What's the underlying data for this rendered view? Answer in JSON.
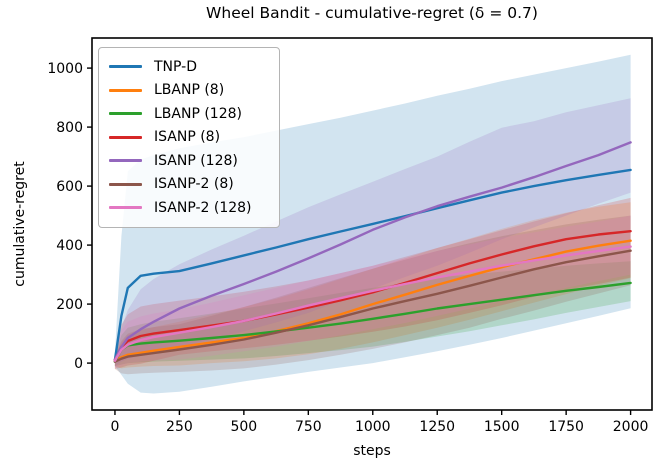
{
  "chart_data": {
    "type": "line",
    "title": "Wheel Bandit - cumulative-regret (δ = 0.7)",
    "xlabel": "steps",
    "ylabel": "cumulative-regret",
    "xlim": [
      -89,
      2083
    ],
    "ylim": [
      -159,
      1102
    ],
    "x_ticks": [
      0,
      250,
      500,
      750,
      1000,
      1250,
      1500,
      1750,
      2000
    ],
    "y_ticks": [
      0,
      200,
      400,
      600,
      800,
      1000
    ],
    "grid": false,
    "legend_position": "upper left",
    "band_opacity": 0.2,
    "x": [
      0,
      25,
      50,
      100,
      150,
      250,
      375,
      500,
      625,
      750,
      875,
      1000,
      1125,
      1250,
      1375,
      1500,
      1625,
      1750,
      1875,
      2000
    ],
    "series": [
      {
        "name": "TNP-D",
        "color": "#1f77b4",
        "values": [
          10,
          160,
          255,
          296,
          303,
          312,
          338,
          365,
          392,
          420,
          446,
          472,
          498,
          525,
          552,
          578,
          600,
          620,
          638,
          655
        ],
        "band_top": [
          30,
          430,
          650,
          690,
          705,
          728,
          748,
          766,
          788,
          810,
          832,
          856,
          880,
          906,
          930,
          956,
          978,
          1000,
          1022,
          1045
        ],
        "band_bottom": [
          -10,
          -40,
          -70,
          -100,
          -103,
          -97,
          -80,
          -62,
          -46,
          -30,
          -15,
          0,
          20,
          40,
          62,
          85,
          110,
          135,
          160,
          186
        ]
      },
      {
        "name": "LBANP (8)",
        "color": "#ff7f0e",
        "values": [
          8,
          20,
          28,
          35,
          42,
          55,
          70,
          85,
          108,
          135,
          165,
          200,
          232,
          265,
          296,
          325,
          352,
          378,
          398,
          415
        ],
        "band_top": [
          25,
          70,
          95,
          112,
          122,
          140,
          165,
          190,
          218,
          250,
          285,
          320,
          355,
          390,
          422,
          455,
          485,
          510,
          530,
          545
        ],
        "band_bottom": [
          -10,
          -18,
          -15,
          -12,
          -10,
          -8,
          0,
          6,
          16,
          30,
          48,
          70,
          95,
          120,
          147,
          176,
          205,
          234,
          262,
          288
        ]
      },
      {
        "name": "LBANP (128)",
        "color": "#2ca02c",
        "values": [
          5,
          45,
          60,
          66,
          70,
          76,
          85,
          95,
          107,
          120,
          134,
          150,
          167,
          185,
          200,
          215,
          230,
          245,
          258,
          272
        ],
        "band_top": [
          25,
          95,
          120,
          132,
          140,
          152,
          168,
          185,
          202,
          220,
          238,
          255,
          272,
          290,
          300,
          310,
          320,
          330,
          338,
          345
        ],
        "band_bottom": [
          -10,
          -5,
          0,
          3,
          5,
          8,
          12,
          16,
          24,
          34,
          44,
          56,
          72,
          90,
          108,
          128,
          148,
          170,
          190,
          210
        ]
      },
      {
        "name": "ISANP (8)",
        "color": "#d62728",
        "values": [
          12,
          55,
          75,
          92,
          100,
          112,
          127,
          143,
          165,
          188,
          213,
          240,
          272,
          305,
          338,
          368,
          396,
          420,
          436,
          447
        ],
        "band_top": [
          35,
          130,
          165,
          192,
          200,
          212,
          226,
          242,
          260,
          280,
          305,
          330,
          360,
          390,
          420,
          450,
          480,
          508,
          535,
          560
        ],
        "band_bottom": [
          -20,
          -15,
          -8,
          -2,
          8,
          28,
          40,
          50,
          62,
          76,
          90,
          106,
          124,
          145,
          170,
          196,
          225,
          248,
          268,
          290
        ]
      },
      {
        "name": "ISANP (128)",
        "color": "#9467bd",
        "values": [
          12,
          55,
          85,
          115,
          140,
          185,
          228,
          268,
          310,
          355,
          402,
          452,
          494,
          532,
          564,
          595,
          630,
          668,
          705,
          748
        ],
        "band_top": [
          30,
          120,
          180,
          250,
          285,
          335,
          385,
          432,
          480,
          528,
          572,
          615,
          658,
          700,
          750,
          798,
          820,
          850,
          874,
          898
        ],
        "band_bottom": [
          -10,
          5,
          15,
          25,
          35,
          55,
          80,
          108,
          138,
          170,
          212,
          252,
          292,
          330,
          374,
          420,
          460,
          500,
          540,
          578
        ]
      },
      {
        "name": "ISANP-2 (8)",
        "color": "#8c564b",
        "values": [
          5,
          15,
          22,
          28,
          34,
          46,
          62,
          80,
          103,
          128,
          156,
          185,
          210,
          235,
          262,
          290,
          318,
          342,
          362,
          381
        ],
        "band_top": [
          25,
          75,
          100,
          115,
          122,
          132,
          160,
          190,
          222,
          255,
          288,
          320,
          350,
          380,
          406,
          430,
          450,
          470,
          486,
          500
        ],
        "band_bottom": [
          -20,
          -35,
          -38,
          -35,
          -33,
          -30,
          -25,
          -18,
          -5,
          10,
          28,
          48,
          70,
          95,
          120,
          150,
          178,
          208,
          236,
          264
        ]
      },
      {
        "name": "ISANP-2 (128)",
        "color": "#e377c2",
        "values": [
          8,
          45,
          62,
          78,
          88,
          103,
          122,
          143,
          168,
          195,
          220,
          245,
          268,
          290,
          310,
          330,
          348,
          365,
          380,
          395
        ],
        "band_top": [
          25,
          110,
          140,
          158,
          168,
          182,
          205,
          230,
          255,
          280,
          305,
          330,
          355,
          380,
          402,
          425,
          443,
          462,
          480,
          500
        ],
        "band_bottom": [
          -15,
          -8,
          0,
          5,
          8,
          12,
          25,
          40,
          56,
          75,
          94,
          115,
          136,
          160,
          184,
          210,
          232,
          255,
          278,
          300
        ]
      }
    ]
  }
}
